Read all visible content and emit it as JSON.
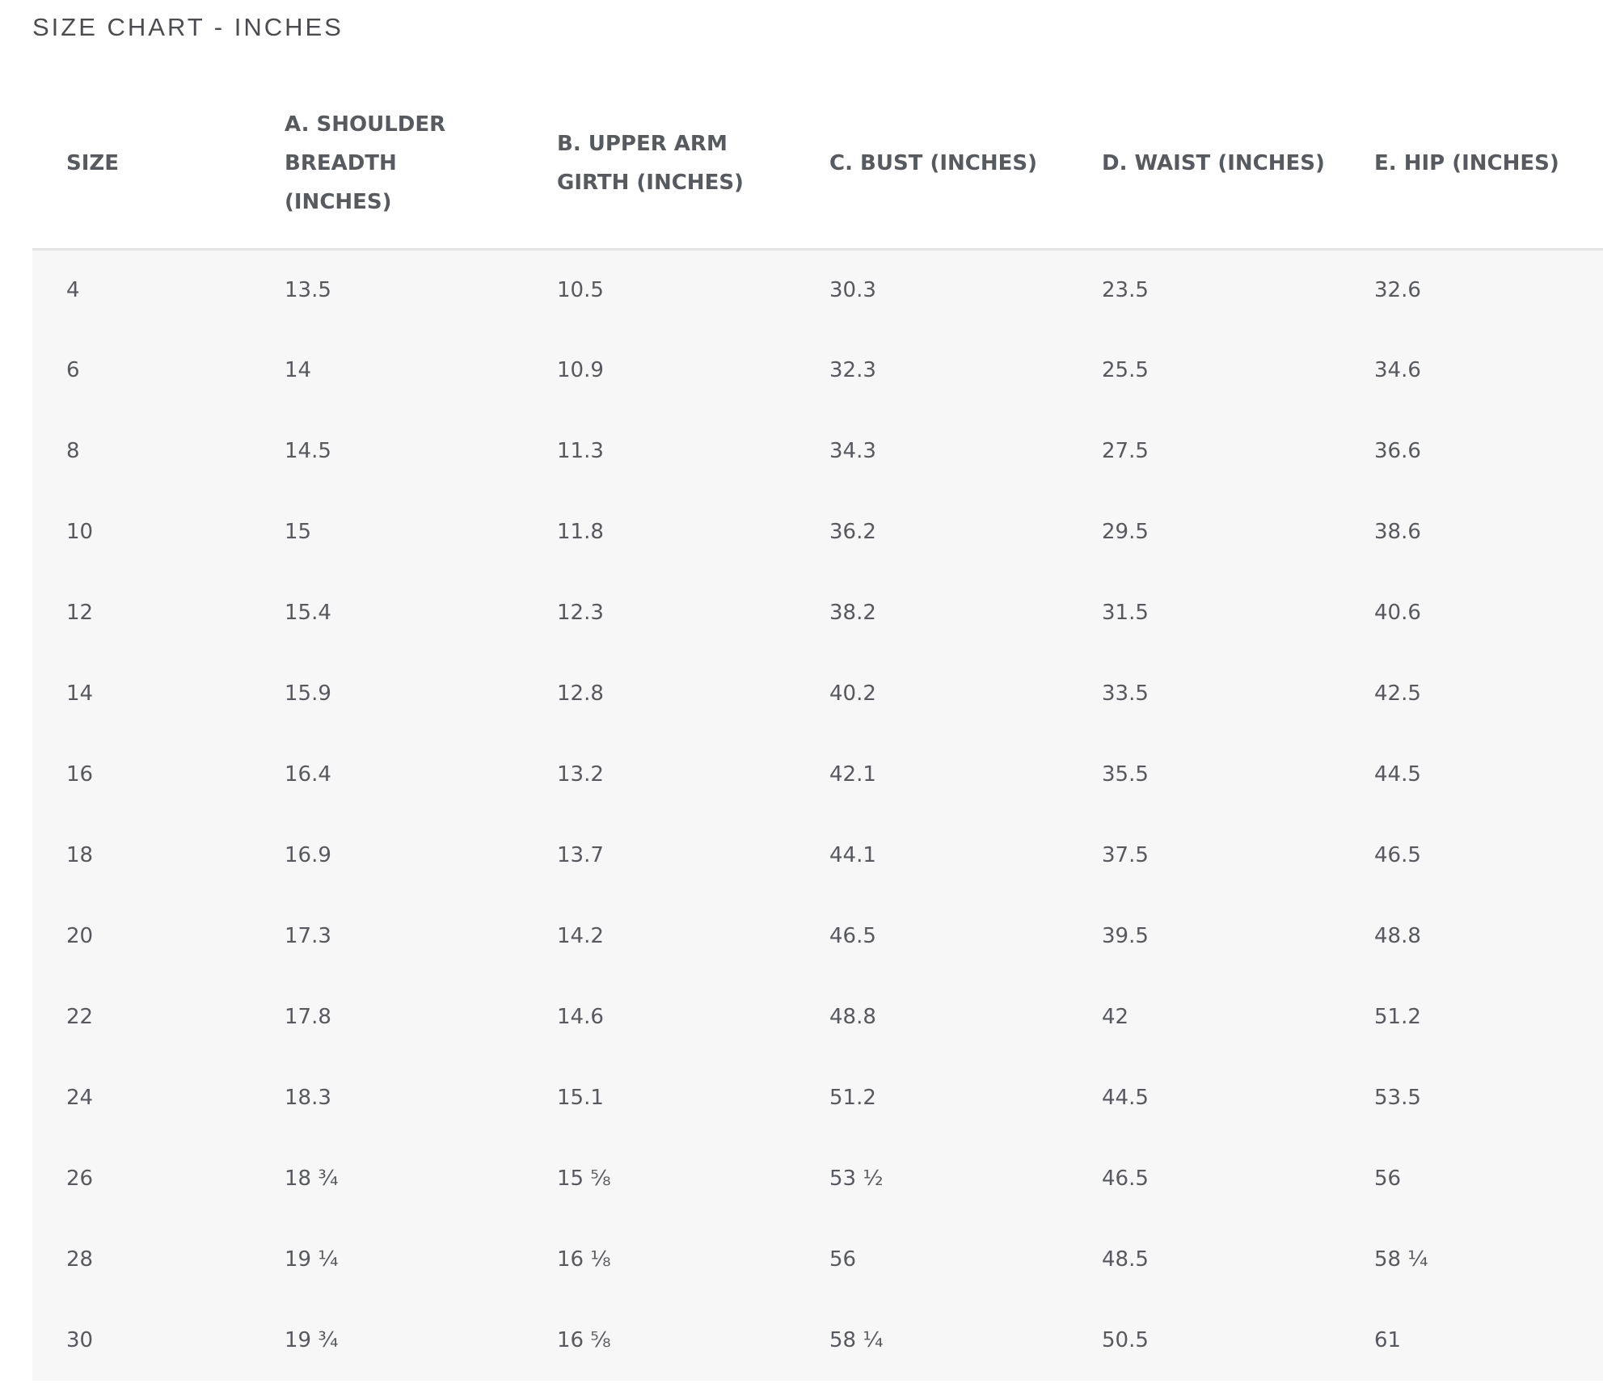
{
  "page": {
    "title": "SIZE CHART - INCHES"
  },
  "table": {
    "headers": [
      "SIZE",
      "A. SHOULDER\nBREADTH\n(INCHES)",
      "B. UPPER ARM\nGIRTH (INCHES)",
      "C. BUST (INCHES)",
      "D. WAIST (INCHES)",
      "E. HIP (INCHES)"
    ],
    "rows": [
      [
        "4",
        "13.5",
        "10.5",
        "30.3",
        "23.5",
        "32.6"
      ],
      [
        "6",
        "14",
        "10.9",
        "32.3",
        "25.5",
        "34.6"
      ],
      [
        "8",
        "14.5",
        "11.3",
        "34.3",
        "27.5",
        "36.6"
      ],
      [
        "10",
        "15",
        "11.8",
        "36.2",
        "29.5",
        "38.6"
      ],
      [
        "12",
        "15.4",
        "12.3",
        "38.2",
        "31.5",
        "40.6"
      ],
      [
        "14",
        "15.9",
        "12.8",
        "40.2",
        "33.5",
        "42.5"
      ],
      [
        "16",
        "16.4",
        "13.2",
        "42.1",
        "35.5",
        "44.5"
      ],
      [
        "18",
        "16.9",
        "13.7",
        "44.1",
        "37.5",
        "46.5"
      ],
      [
        "20",
        "17.3",
        "14.2",
        "46.5",
        "39.5",
        "48.8"
      ],
      [
        "22",
        "17.8",
        "14.6",
        "48.8",
        "42",
        "51.2"
      ],
      [
        "24",
        "18.3",
        "15.1",
        "51.2",
        "44.5",
        "53.5"
      ],
      [
        "26",
        "18 ¾",
        "15 ⅝",
        "53 ½",
        "46.5",
        "56"
      ],
      [
        "28",
        "19 ¼",
        "16 ⅛",
        "56",
        "48.5",
        "58 ¼"
      ],
      [
        "30",
        "19 ¾",
        "16 ⅝",
        "58 ¼",
        "50.5",
        "61"
      ]
    ]
  }
}
